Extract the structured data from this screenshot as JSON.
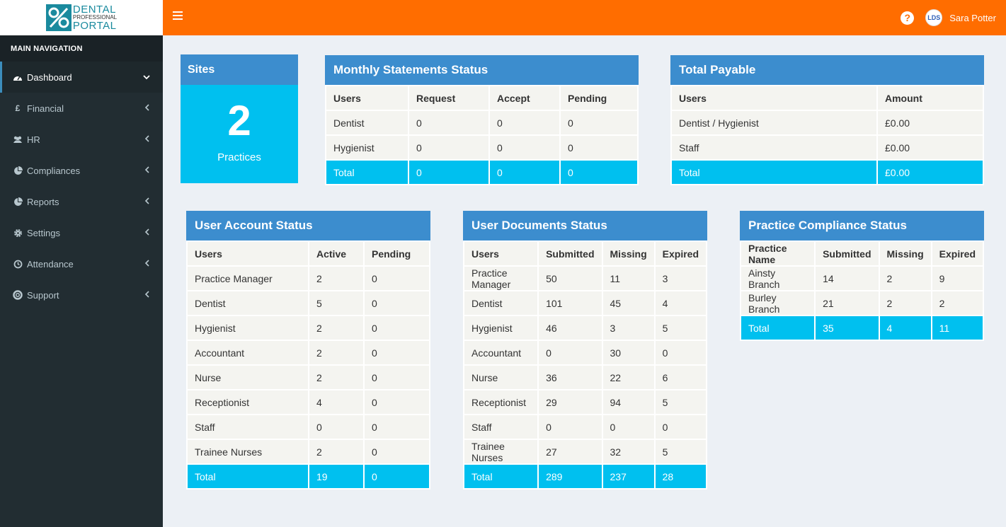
{
  "brand": {
    "line1": "DENTAL",
    "line2": "PROFESSIONAL",
    "line3": "PORTAL"
  },
  "header": {
    "help_icon": "?",
    "avatar_initials": "LDS",
    "user_name": "Sara Potter",
    "accent_color": "#ff6d00"
  },
  "sidebar": {
    "heading": "MAIN NAVIGATION",
    "items": [
      {
        "label": "Dashboard",
        "icon": "dashboard-icon"
      },
      {
        "label": "Financial",
        "icon": "pound-icon"
      },
      {
        "label": "HR",
        "icon": "users-icon"
      },
      {
        "label": "Compliances",
        "icon": "pie-chart-icon"
      },
      {
        "label": "Reports",
        "icon": "pie-chart-icon"
      },
      {
        "label": "Settings",
        "icon": "gear-icon"
      },
      {
        "label": "Attendance",
        "icon": "clock-icon"
      },
      {
        "label": "Support",
        "icon": "life-ring-icon"
      }
    ]
  },
  "sites": {
    "title": "Sites",
    "count": "2",
    "label": "Practices"
  },
  "monthly": {
    "title": "Monthly Statements Status",
    "headers": [
      "Users",
      "Request",
      "Accept",
      "Pending"
    ],
    "rows": [
      [
        "Dentist",
        "0",
        "0",
        "0"
      ],
      [
        "Hygienist",
        "0",
        "0",
        "0"
      ]
    ],
    "total": [
      "Total",
      "0",
      "0",
      "0"
    ]
  },
  "payable": {
    "title": "Total Payable",
    "headers": [
      "Users",
      "Amount"
    ],
    "rows": [
      [
        "Dentist / Hygienist",
        "£0.00"
      ],
      [
        "Staff",
        "£0.00"
      ]
    ],
    "total": [
      "Total",
      "£0.00"
    ]
  },
  "user_account": {
    "title": "User Account Status",
    "headers": [
      "Users",
      "Active",
      "Pending"
    ],
    "rows": [
      [
        "Practice Manager",
        "2",
        "0"
      ],
      [
        "Dentist",
        "5",
        "0"
      ],
      [
        "Hygienist",
        "2",
        "0"
      ],
      [
        "Accountant",
        "2",
        "0"
      ],
      [
        "Nurse",
        "2",
        "0"
      ],
      [
        "Receptionist",
        "4",
        "0"
      ],
      [
        "Staff",
        "0",
        "0"
      ],
      [
        "Trainee Nurses",
        "2",
        "0"
      ]
    ],
    "total": [
      "Total",
      "19",
      "0"
    ]
  },
  "user_documents": {
    "title": "User Documents Status",
    "headers": [
      "Users",
      "Submitted",
      "Missing",
      "Expired"
    ],
    "rows": [
      [
        "Practice Manager",
        "50",
        "11",
        "3"
      ],
      [
        "Dentist",
        "101",
        "45",
        "4"
      ],
      [
        "Hygienist",
        "46",
        "3",
        "5"
      ],
      [
        "Accountant",
        "0",
        "30",
        "0"
      ],
      [
        "Nurse",
        "36",
        "22",
        "6"
      ],
      [
        "Receptionist",
        "29",
        "94",
        "5"
      ],
      [
        "Staff",
        "0",
        "0",
        "0"
      ],
      [
        "Trainee Nurses",
        "27",
        "32",
        "5"
      ]
    ],
    "total": [
      "Total",
      "289",
      "237",
      "28"
    ]
  },
  "practice_compliance": {
    "title": "Practice Compliance Status",
    "headers": [
      "Practice Name",
      "Submitted",
      "Missing",
      "Expired"
    ],
    "rows": [
      [
        "Ainsty Branch",
        "14",
        "2",
        "9"
      ],
      [
        "Burley Branch",
        "21",
        "2",
        "2"
      ]
    ],
    "total": [
      "Total",
      "35",
      "4",
      "11"
    ]
  }
}
